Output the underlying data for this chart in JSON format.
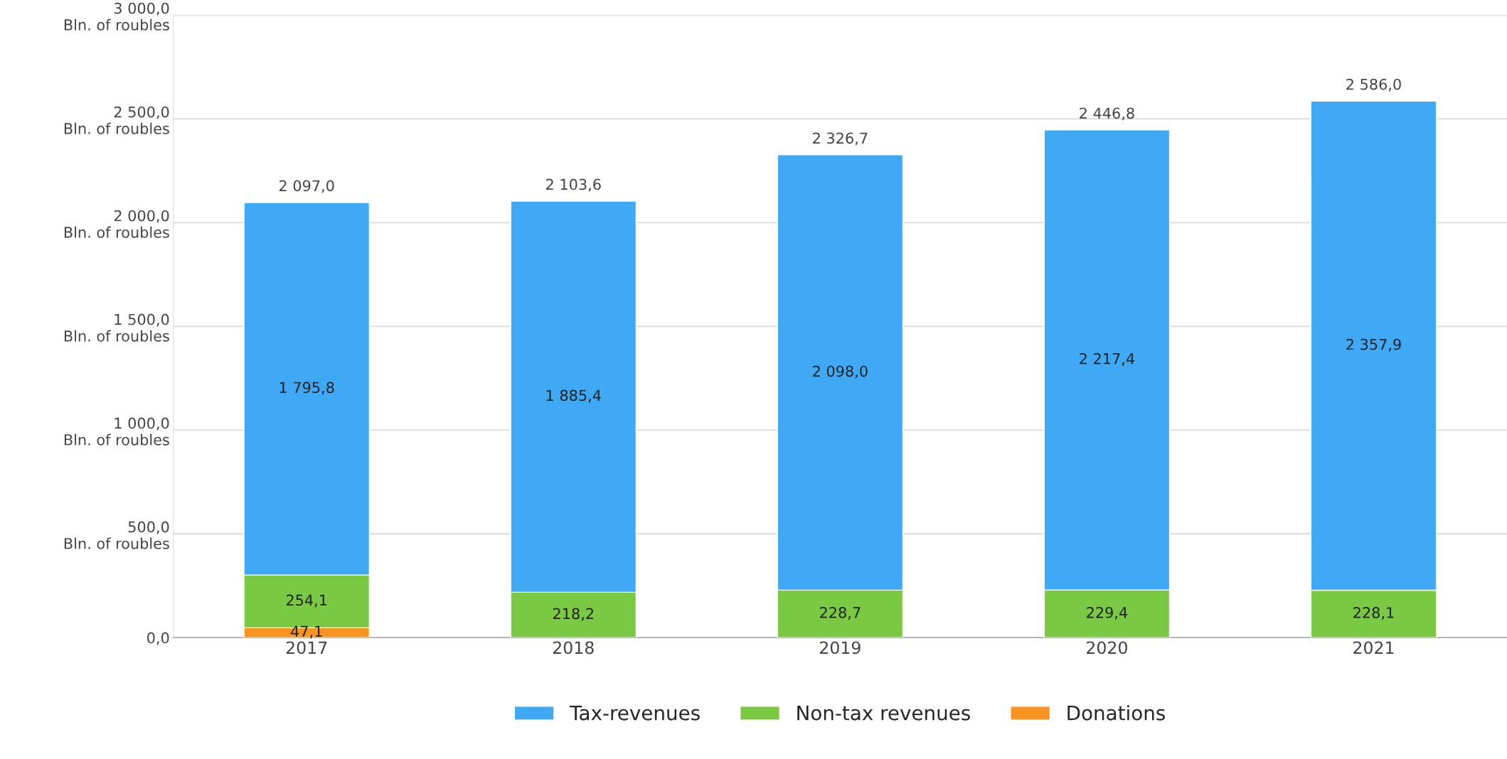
{
  "chart_data": {
    "type": "bar",
    "stacked": true,
    "categories": [
      "2017",
      "2018",
      "2019",
      "2020",
      "2021"
    ],
    "series": [
      {
        "name": "Donations",
        "color": "#f7931e",
        "values": [
          47.1,
          null,
          null,
          null,
          null
        ],
        "value_labels": [
          "47,1",
          null,
          null,
          null,
          null
        ]
      },
      {
        "name": "Non-tax revenues",
        "color": "#7ac943",
        "values": [
          254.1,
          218.2,
          228.7,
          229.4,
          228.1
        ],
        "value_labels": [
          "254,1",
          "218,2",
          "228,7",
          "229,4",
          "228,1"
        ]
      },
      {
        "name": "Tax-revenues",
        "color": "#3fa9f5",
        "values": [
          1795.8,
          1885.4,
          2098.0,
          2217.4,
          2357.9
        ],
        "value_labels": [
          "1 795,8",
          "1 885,4",
          "2 098,0",
          "2 217,4",
          "2 357,9"
        ]
      }
    ],
    "totals": [
      "2 097,0",
      "2 103,6",
      "2 326,7",
      "2 446,8",
      "2 586,0"
    ],
    "ylim": [
      0,
      3000
    ],
    "yticks": [
      {
        "value": 0,
        "label": "0,0"
      },
      {
        "value": 500,
        "label": "500,0\nBln. of roubles"
      },
      {
        "value": 1000,
        "label": "1 000,0\nBln. of roubles"
      },
      {
        "value": 1500,
        "label": "1 500,0\nBln. of roubles"
      },
      {
        "value": 2000,
        "label": "2 000,0\nBln. of roubles"
      },
      {
        "value": 2500,
        "label": "2 500,0\nBln. of roubles"
      },
      {
        "value": 3000,
        "label": "3 000,0\nBln. of roubles"
      }
    ],
    "grid": "y",
    "legend": "bottom"
  }
}
